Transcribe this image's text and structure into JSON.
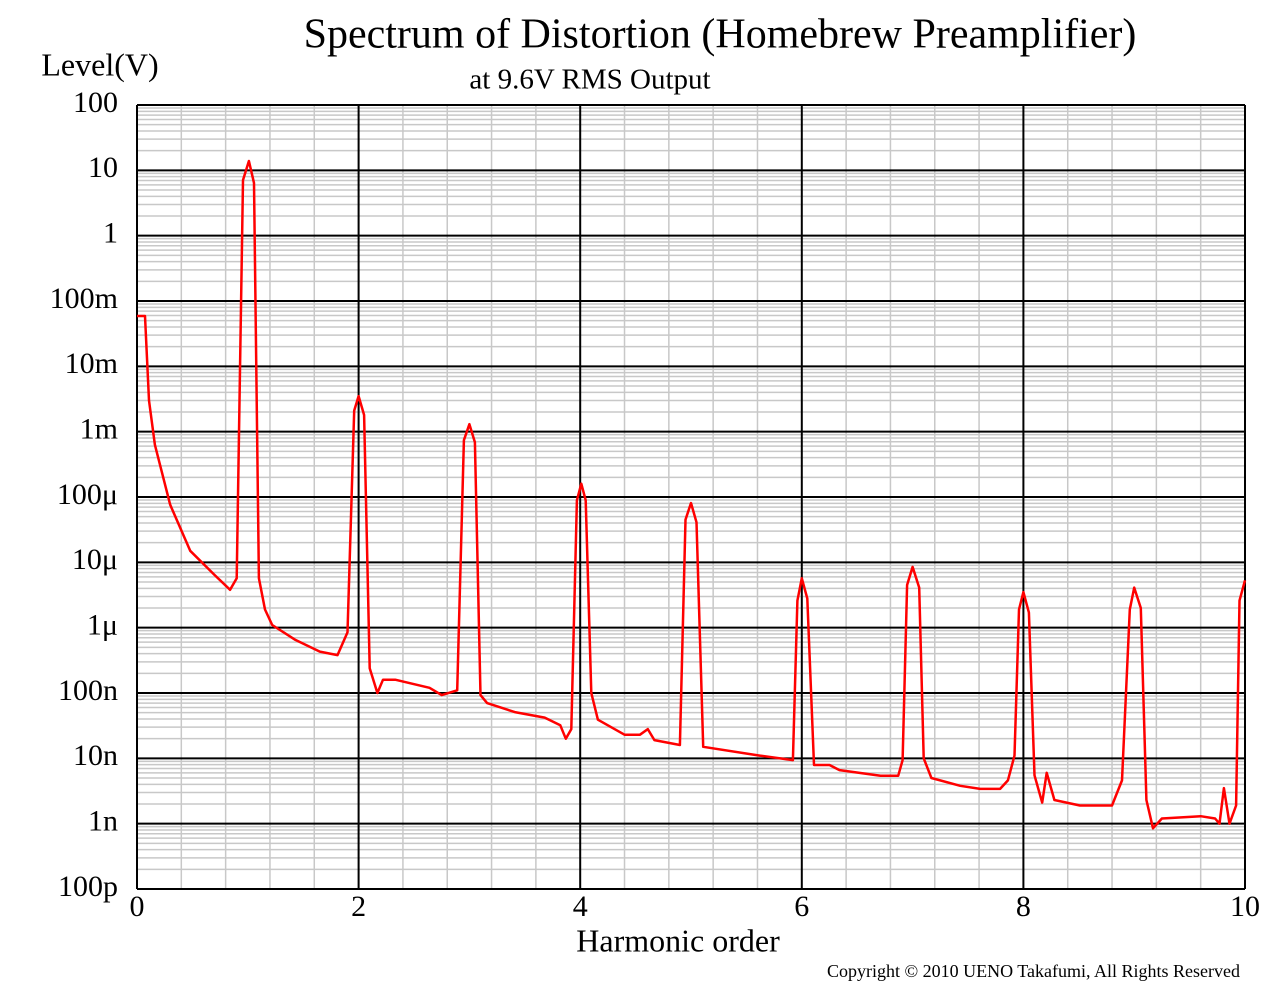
{
  "chart_data": {
    "type": "line",
    "title": "Spectrum of Distortion (Homebrew Preamplifier)",
    "subtitle": "at 9.6V RMS Output",
    "y_label": "Level(V)",
    "x_label": "Harmonic order",
    "copyright": "Copyright © 2010 UENO Takafumi, All Rights Reserved",
    "color": "#ff0000",
    "log_y": true,
    "grid": true,
    "minor_grid": true,
    "xlim": [
      0,
      10
    ],
    "ylim": [
      1e-10,
      100
    ],
    "xticks": [
      0,
      2,
      4,
      6,
      8,
      10
    ],
    "yticks": [
      100,
      10,
      1,
      {
        "value": 0.1,
        "label": "100m"
      },
      {
        "value": 0.01,
        "label": "10m"
      },
      {
        "value": 0.001,
        "label": "1m"
      },
      {
        "value": 0.0001,
        "label": "100μ"
      },
      {
        "value": 1e-05,
        "label": "10μ"
      },
      {
        "value": 1e-06,
        "label": "1μ"
      },
      {
        "value": 1e-07,
        "label": "100n"
      },
      {
        "value": 1e-08,
        "label": "10n"
      },
      {
        "value": 1e-09,
        "label": "1n"
      },
      {
        "value": 1e-10,
        "label": "100p"
      }
    ],
    "x": [
      0,
      0.072,
      0.108,
      0.162,
      0.3,
      0.48,
      0.7,
      0.84,
      0.9,
      0.957,
      1.01,
      1.056,
      1.1,
      1.155,
      1.22,
      1.43,
      1.65,
      1.81,
      1.9,
      1.96,
      2.0,
      2.05,
      2.1,
      2.17,
      2.22,
      2.33,
      2.64,
      2.75,
      2.89,
      2.95,
      3.0,
      3.05,
      3.1,
      3.16,
      3.41,
      3.68,
      3.82,
      3.87,
      3.92,
      3.97,
      4.01,
      4.05,
      4.1,
      4.16,
      4.4,
      4.54,
      4.61,
      4.67,
      4.9,
      4.95,
      5.0,
      5.05,
      5.11,
      5.62,
      5.92,
      5.96,
      6.0,
      6.05,
      6.11,
      6.25,
      6.34,
      6.71,
      6.87,
      6.91,
      6.95,
      7.0,
      7.06,
      7.1,
      7.17,
      7.43,
      7.61,
      7.79,
      7.86,
      7.92,
      7.96,
      8.0,
      8.05,
      8.1,
      8.17,
      8.21,
      8.28,
      8.51,
      8.8,
      8.89,
      8.96,
      9.0,
      9.06,
      9.11,
      9.17,
      9.25,
      9.6,
      9.73,
      9.77,
      9.81,
      9.86,
      9.92,
      9.95,
      10.0
    ],
    "values": [
      0.059,
      0.059,
      0.003,
      0.00063,
      7.6e-05,
      1.5e-05,
      6.4e-06,
      3.8e-06,
      5.7e-06,
      7.1,
      13.9,
      6.4,
      5.7e-06,
      1.9e-06,
      1.1e-06,
      6.5e-07,
      4.3e-07,
      3.8e-07,
      8.5e-07,
      0.0021,
      0.0035,
      0.0018,
      2.4e-07,
      1e-07,
      1.6e-07,
      1.6e-07,
      1.2e-07,
      9.3e-08,
      1.1e-07,
      0.00074,
      0.0013,
      0.00069,
      9.3e-08,
      7e-08,
      5.1e-08,
      4.2e-08,
      3.2e-08,
      2e-08,
      2.8e-08,
      8.9e-05,
      0.00016,
      8.9e-05,
      1e-07,
      3.9e-08,
      2.3e-08,
      2.3e-08,
      2.8e-08,
      1.9e-08,
      1.6e-08,
      4.5e-05,
      8.1e-05,
      4.1e-05,
      1.5e-08,
      1.1e-08,
      9.4e-09,
      2.6e-06,
      5.7e-06,
      2.8e-06,
      7.9e-09,
      7.9e-09,
      6.6e-09,
      5.4e-09,
      5.4e-09,
      9.4e-09,
      4.5e-06,
      8.5e-06,
      4.1e-06,
      1e-08,
      5e-09,
      3.8e-09,
      3.4e-09,
      3.4e-09,
      4.6e-09,
      1.1e-08,
      1.9e-06,
      3.5e-06,
      1.7e-06,
      5.5e-09,
      2.1e-09,
      6e-09,
      2.3e-09,
      1.9e-09,
      1.9e-09,
      4.6e-09,
      1.9e-06,
      4.1e-06,
      2e-06,
      2.3e-09,
      8.5e-10,
      1.2e-09,
      1.3e-09,
      1.2e-09,
      1e-09,
      3.5e-09,
      1e-09,
      1.9e-09,
      2.6e-06,
      5.3e-06
    ]
  }
}
